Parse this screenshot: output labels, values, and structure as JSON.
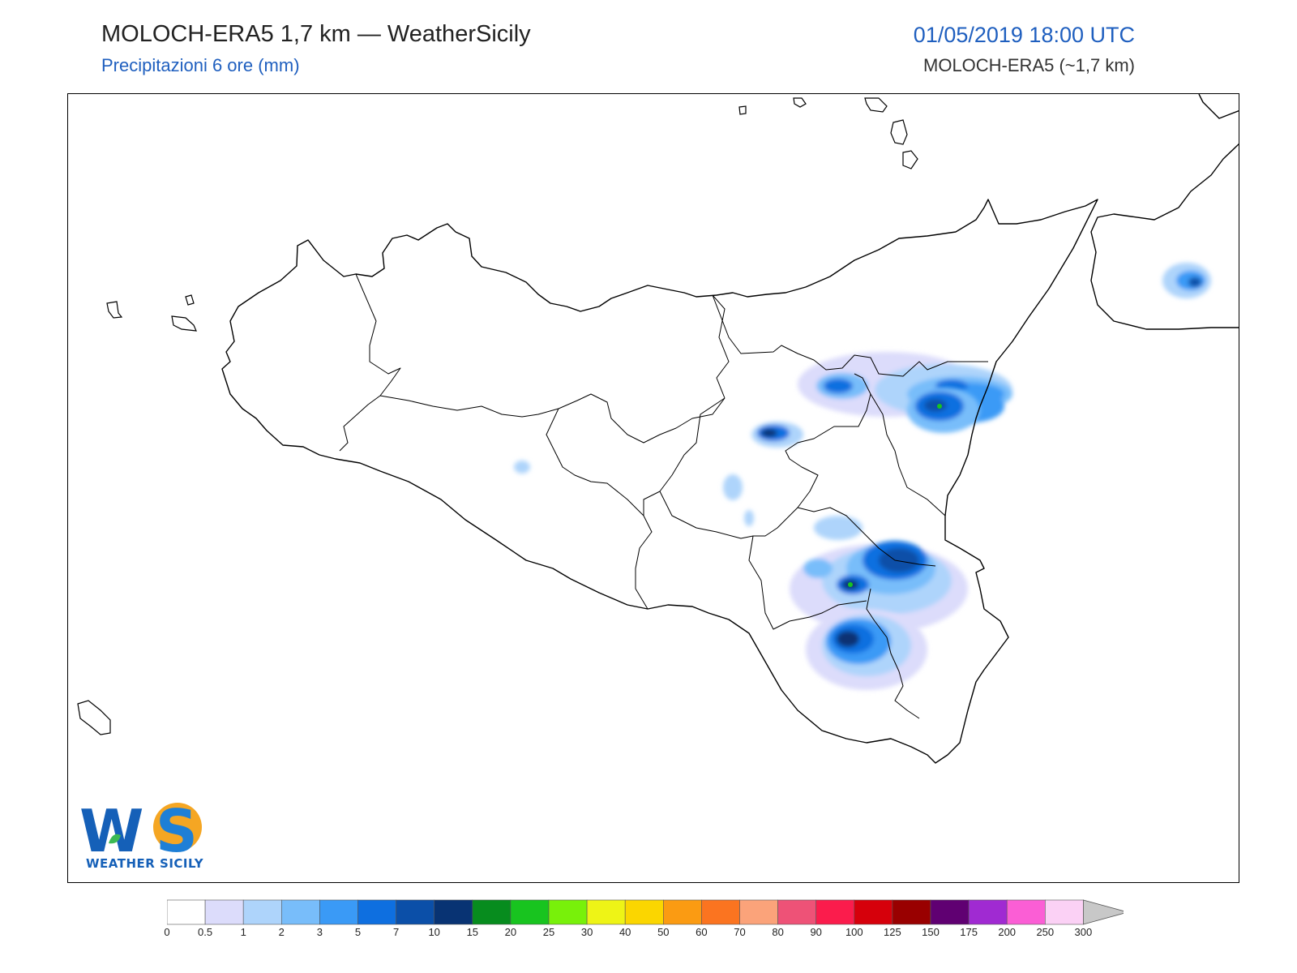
{
  "header": {
    "title": "MOLOCH-ERA5 1,7 km — WeatherSicily",
    "subtitle": "Precipitazioni 6 ore (mm)",
    "datetime": "01/05/2019 18:00 UTC",
    "model": "MOLOCH-ERA5 (~1,7 km)"
  },
  "logo": {
    "text": "WEATHER SICILY",
    "letters": "WS"
  },
  "legend": {
    "labels": [
      "0",
      "0.5",
      "1",
      "2",
      "3",
      "5",
      "7",
      "10",
      "15",
      "20",
      "25",
      "30",
      "40",
      "50",
      "60",
      "70",
      "80",
      "90",
      "100",
      "125",
      "150",
      "175",
      "200",
      "250",
      "300"
    ],
    "colors": [
      "#ffffff",
      "#dcdcfb",
      "#aed4fb",
      "#78bdfa",
      "#3a9af6",
      "#0e6fe0",
      "#0b4fa8",
      "#083373",
      "#078c1e",
      "#18c41f",
      "#78f10a",
      "#eef416",
      "#fbd600",
      "#fb9b12",
      "#fb7420",
      "#fba37a",
      "#ee5277",
      "#fb1c4c",
      "#d6000b",
      "#990000",
      "#600072",
      "#a02ad2",
      "#fb5ed5",
      "#fbd1f5"
    ],
    "overflow_color": "#c8c8c8"
  }
}
